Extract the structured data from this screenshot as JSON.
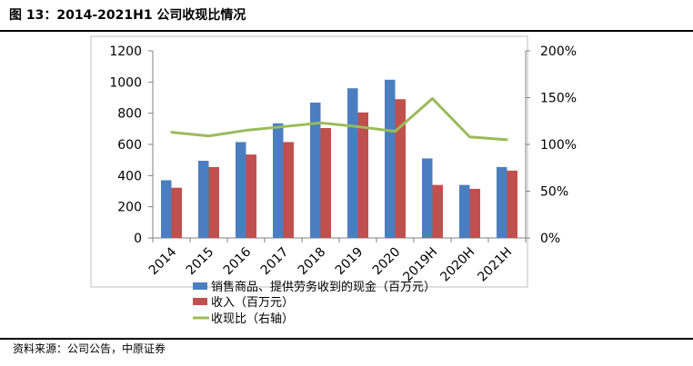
{
  "figure": {
    "title": "图 13：2014-2021H1 公司收现比情况",
    "source": "资料来源：公司公告，中原证券"
  },
  "colors": {
    "cash_bar": "#4a7ec0",
    "revenue_bar": "#c0504d",
    "ratio_line": "#9bbb59"
  },
  "chart_data": {
    "type": "bar",
    "categories": [
      "2014",
      "2015",
      "2016",
      "2017",
      "2018",
      "2019",
      "2020",
      "2019H",
      "2020H",
      "2021H"
    ],
    "series": [
      {
        "name": "销售商品、提供劳务收到的现金（百万元）",
        "kind": "bar",
        "axis": "left",
        "values": [
          370,
          495,
          615,
          735,
          868,
          960,
          1015,
          510,
          340,
          455
        ]
      },
      {
        "name": "收入（百万元）",
        "kind": "bar",
        "axis": "left",
        "values": [
          322,
          455,
          535,
          615,
          705,
          805,
          890,
          340,
          315,
          432
        ]
      },
      {
        "name": "收现比（右轴）",
        "kind": "line",
        "axis": "right",
        "values": [
          1.13,
          1.09,
          1.15,
          1.19,
          1.23,
          1.19,
          1.14,
          1.49,
          1.08,
          1.05
        ]
      }
    ],
    "y_left": {
      "min": 0,
      "max": 1200,
      "ticks": [
        "0",
        "200",
        "400",
        "600",
        "800",
        "1000",
        "1200"
      ]
    },
    "y_right": {
      "min": 0,
      "max": 2.0,
      "ticks": [
        "0%",
        "50%",
        "100%",
        "150%",
        "200%"
      ]
    },
    "grid": false,
    "legend_position": "bottom"
  }
}
